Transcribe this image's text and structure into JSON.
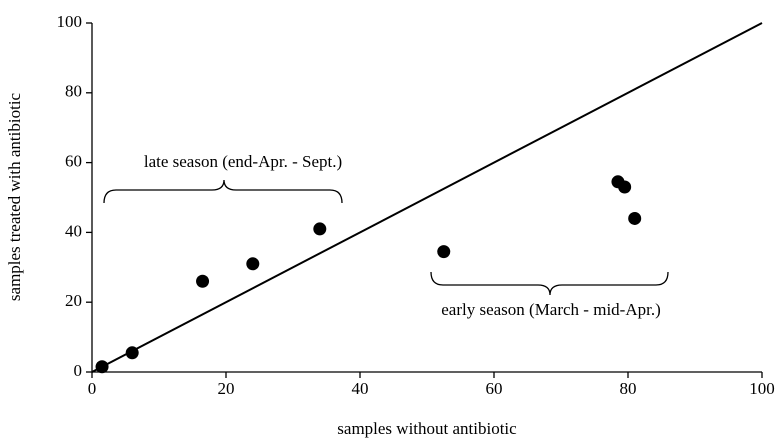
{
  "chart_data": {
    "type": "scatter",
    "x_label": "samples without antibiotic",
    "y_label": "samples treated with antibiotic",
    "x": [
      1.5,
      6,
      16.5,
      24,
      34,
      52.5,
      78.5,
      79.5,
      81
    ],
    "values": [
      1.5,
      5.5,
      26,
      31,
      41,
      34.5,
      54.5,
      53,
      44
    ],
    "color": "#000000",
    "reference_line": {
      "x": [
        0,
        100
      ],
      "values": [
        0,
        100
      ],
      "color": "#000000"
    },
    "annotations": [
      "late season (end-Apr. - Sept.)",
      "early season (March - mid-Apr.)"
    ],
    "xlim": [
      0,
      100
    ],
    "xticks": [
      0,
      20,
      40,
      60,
      80,
      100
    ],
    "ylim": [
      0,
      100
    ],
    "yticks": [
      0,
      20,
      40,
      60,
      80,
      100
    ],
    "grid": false
  }
}
